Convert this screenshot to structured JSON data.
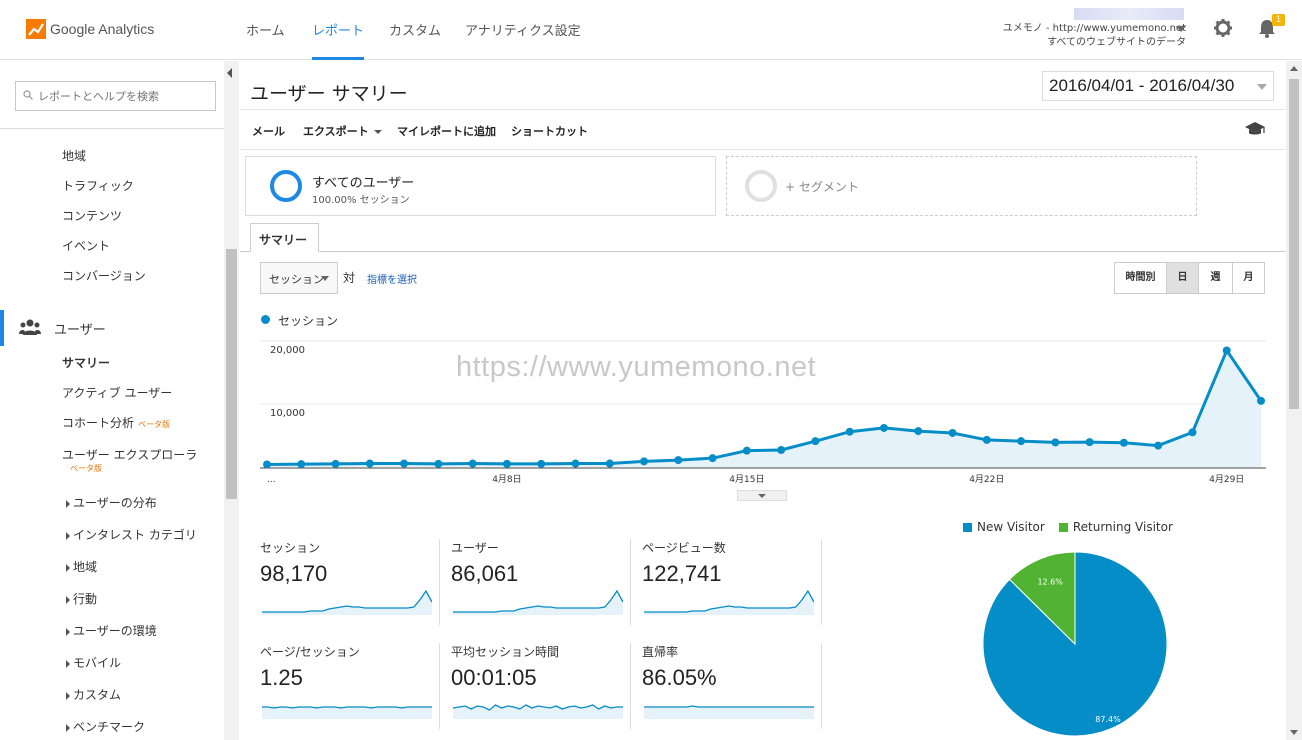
{
  "app": {
    "logo_text": "Google Analytics"
  },
  "nav": {
    "tabs": [
      {
        "label": "ホーム",
        "active": false
      },
      {
        "label": "レポート",
        "active": true
      },
      {
        "label": "カスタム",
        "active": false
      },
      {
        "label": "アナリティクス設定",
        "active": false
      }
    ]
  },
  "account": {
    "line1": "ユメモノ - http://www.yumemono.net",
    "line2": "すべてのウェブサイトのデータ",
    "notifications": "1"
  },
  "sidebar": {
    "search_placeholder": "レポートとヘルプを検索",
    "top_items": [
      "地域",
      "トラフィック",
      "コンテンツ",
      "イベント",
      "コンバージョン"
    ],
    "section": "ユーザー",
    "summary": "サマリー",
    "items": [
      {
        "label": "アクティブ ユーザー",
        "beta": ""
      },
      {
        "label": "コホート分析",
        "beta": "ベータ版"
      },
      {
        "label": "ユーザー エクスプローラ",
        "beta": "ベータ版"
      }
    ],
    "sub_items": [
      "ユーザーの分布",
      "インタレスト カテゴリ",
      "地域",
      "行動",
      "ユーザーの環境",
      "モバイル",
      "カスタム",
      "ベンチマーク"
    ]
  },
  "page": {
    "title": "ユーザー サマリー",
    "date_range": "2016/04/01 - 2016/04/30"
  },
  "toolbar": {
    "mail": "メール",
    "export": "エクスポート",
    "add_dashboard": "マイレポートに追加",
    "shortcut": "ショートカット"
  },
  "segments": {
    "all_users": "すべてのユーザー",
    "all_users_sub": "100.00% セッション",
    "add_segment": "+ セグメント"
  },
  "tabs": {
    "summary": "サマリー"
  },
  "controls": {
    "metric": "セッション",
    "vs": "対",
    "choose_metric": "指標を選択",
    "granularity": [
      "時間別",
      "日",
      "週",
      "月"
    ],
    "granularity_selected": "日"
  },
  "watermark": "https://www.yumemono.net",
  "chart_data": {
    "type": "area",
    "series": [
      {
        "name": "セッション",
        "x": [
          "4月1日",
          "4月2日",
          "4月3日",
          "4月4日",
          "4月5日",
          "4月6日",
          "4月7日",
          "4月8日",
          "4月9日",
          "4月10日",
          "4月11日",
          "4月12日",
          "4月13日",
          "4月14日",
          "4月15日",
          "4月16日",
          "4月17日",
          "4月18日",
          "4月19日",
          "4月20日",
          "4月21日",
          "4月22日",
          "4月23日",
          "4月24日",
          "4月25日",
          "4月26日",
          "4月27日",
          "4月28日",
          "4月29日",
          "4月30日"
        ],
        "values": [
          400,
          450,
          500,
          550,
          550,
          500,
          550,
          500,
          500,
          550,
          550,
          900,
          1100,
          1400,
          2600,
          2700,
          4100,
          5600,
          6200,
          5700,
          5400,
          4300,
          4100,
          3900,
          3950,
          3850,
          3400,
          5500,
          18500,
          10500
        ]
      }
    ],
    "color": "#058dc7",
    "ylim": [
      0,
      20000
    ],
    "y_ticks": [
      "20,000",
      "10,000"
    ],
    "x_ticks": [
      "...",
      "4月8日",
      "4月15日",
      "4月22日",
      "4月29日"
    ]
  },
  "scorecards": [
    {
      "label": "セッション",
      "value": "98,170",
      "spark": [
        3,
        3,
        3,
        3,
        3,
        3,
        3,
        3,
        4,
        4,
        4,
        6,
        7,
        8,
        9,
        8,
        8,
        7,
        7,
        7,
        7,
        7,
        7,
        7,
        7,
        8,
        15,
        24,
        13
      ]
    },
    {
      "label": "ユーザー",
      "value": "86,061",
      "spark": [
        3,
        3,
        3,
        3,
        3,
        3,
        3,
        3,
        4,
        4,
        4,
        6,
        7,
        8,
        9,
        8,
        8,
        7,
        7,
        7,
        7,
        7,
        7,
        7,
        7,
        8,
        15,
        24,
        13
      ]
    },
    {
      "label": "ページビュー数",
      "value": "122,741",
      "spark": [
        3,
        3,
        3,
        3,
        3,
        3,
        3,
        3,
        4,
        4,
        4,
        6,
        7,
        8,
        9,
        8,
        8,
        7,
        7,
        7,
        7,
        7,
        7,
        7,
        7,
        8,
        15,
        24,
        13
      ]
    },
    {
      "label": "ページ/セッション",
      "value": "1.25",
      "spark": [
        12,
        12,
        11,
        12,
        12,
        11,
        12,
        12,
        12,
        11,
        12,
        12,
        12,
        11,
        12,
        12,
        12,
        12,
        11,
        12,
        12,
        12,
        12,
        11,
        12,
        12,
        12,
        12,
        12
      ]
    },
    {
      "label": "平均セッション時間",
      "value": "00:01:05",
      "spark": [
        11,
        12,
        13,
        10,
        13,
        12,
        9,
        14,
        11,
        13,
        12,
        10,
        14,
        11,
        13,
        12,
        11,
        13,
        10,
        12,
        13,
        11,
        12,
        14,
        10,
        13,
        11,
        12,
        12
      ]
    },
    {
      "label": "直帰率",
      "value": "86.05%",
      "spark": [
        12,
        12,
        12,
        12,
        12,
        12,
        12,
        12,
        13,
        12,
        12,
        12,
        12,
        12,
        12,
        12,
        12,
        12,
        12,
        12,
        12,
        12,
        12,
        12,
        12,
        12,
        12,
        12,
        12
      ]
    }
  ],
  "pie": {
    "type": "pie",
    "labels": [
      "New Visitor",
      "Returning Visitor"
    ],
    "values": [
      87.4,
      12.6
    ],
    "value_labels": [
      "87.4%",
      "12.6%"
    ],
    "colors": [
      "#058dc7",
      "#50b432"
    ]
  }
}
